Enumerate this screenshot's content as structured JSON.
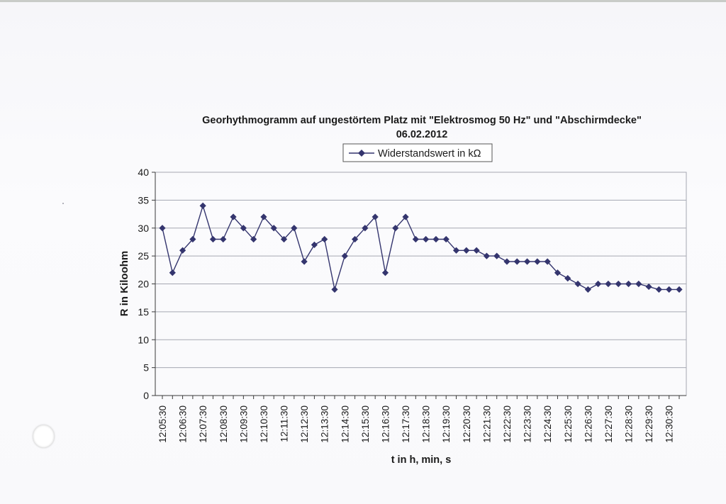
{
  "colors": {
    "series": "#34356e",
    "grid": "#a6a8b2",
    "axis": "#3a3a3a",
    "paper": "#f7f7fa"
  },
  "chart_data": {
    "type": "line",
    "title": "Georhythmogramm auf ungestörtem Platz mit \"Elektrosmog 50 Hz\" und \"Abschirmdecke\"",
    "subtitle": "06.02.2012",
    "xlabel": "t in h, min, s",
    "ylabel": "R in Kiloohm",
    "ylim": [
      0,
      40
    ],
    "yticks": [
      0,
      5,
      10,
      15,
      20,
      25,
      30,
      35,
      40
    ],
    "grid": true,
    "legend": {
      "position": "top",
      "entries": [
        "Widerstandswert in kΩ"
      ]
    },
    "marker": "diamond",
    "x": [
      "12:05:30",
      "12:06:00",
      "12:06:30",
      "12:07:00",
      "12:07:30",
      "12:08:00",
      "12:08:30",
      "12:09:00",
      "12:09:30",
      "12:10:00",
      "12:10:30",
      "12:11:00",
      "12:11:30",
      "12:12:00",
      "12:12:30",
      "12:13:00",
      "12:13:30",
      "12:14:00",
      "12:14:30",
      "12:15:00",
      "12:15:30",
      "12:16:00",
      "12:16:30",
      "12:17:00",
      "12:17:30",
      "12:18:00",
      "12:18:30",
      "12:19:00",
      "12:19:30",
      "12:20:00",
      "12:20:30",
      "12:21:00",
      "12:21:30",
      "12:22:00",
      "12:22:30",
      "12:23:00",
      "12:23:30",
      "12:24:00",
      "12:24:30",
      "12:25:00",
      "12:25:30",
      "12:26:00",
      "12:26:30",
      "12:27:00",
      "12:27:30",
      "12:28:00",
      "12:28:30",
      "12:29:00",
      "12:29:30",
      "12:30:00",
      "12:30:30",
      "12:31:00"
    ],
    "xtick_labels": [
      "12:05:30",
      "12:06:30",
      "12:07:30",
      "12:08:30",
      "12:09:30",
      "12:10:30",
      "12:11:30",
      "12:12:30",
      "12:13:30",
      "12:14:30",
      "12:15:30",
      "12:16:30",
      "12:17:30",
      "12:18:30",
      "12:19:30",
      "12:20:30",
      "12:21:30",
      "12:22:30",
      "12:23:30",
      "12:24:30",
      "12:25:30",
      "12:26:30",
      "12:27:30",
      "12:28:30",
      "12:29:30",
      "12:30:30"
    ],
    "series": [
      {
        "name": "Widerstandswert in kΩ",
        "values": [
          30,
          22,
          26,
          28,
          34,
          28,
          28,
          32,
          30,
          28,
          32,
          30,
          28,
          30,
          24,
          27,
          28,
          19,
          25,
          28,
          30,
          32,
          22,
          30,
          32,
          28,
          28,
          28,
          28,
          26,
          26,
          26,
          25,
          25,
          24,
          24,
          24,
          24,
          24,
          22,
          21,
          20,
          19,
          20,
          20,
          20,
          20,
          20,
          19.5,
          19,
          19,
          19
        ]
      }
    ]
  }
}
